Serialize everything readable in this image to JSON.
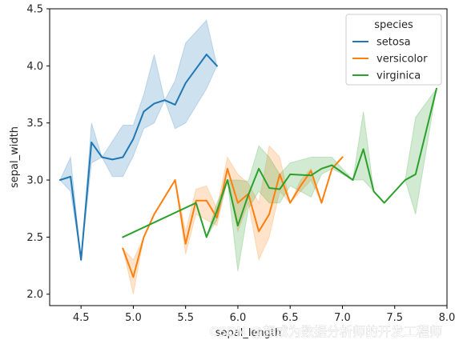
{
  "chart_data": {
    "type": "line",
    "xlabel": "sepal_length",
    "ylabel": "sepal_width",
    "xlim": [
      4.2,
      8.0
    ],
    "ylim": [
      1.9,
      4.5
    ],
    "xticks": [
      "4.5",
      "5.0",
      "5.5",
      "6.0",
      "6.5",
      "7.0",
      "7.5",
      "8.0"
    ],
    "yticks": [
      "2.0",
      "2.5",
      "3.0",
      "3.5",
      "4.0",
      "4.5"
    ],
    "legend": {
      "title": "species",
      "placement": "upper-right"
    },
    "series": [
      {
        "name": "setosa",
        "color": "#1f77b4",
        "x": [
          4.3,
          4.4,
          4.5,
          4.6,
          4.7,
          4.8,
          4.9,
          5.0,
          5.1,
          5.2,
          5.3,
          5.4,
          5.5,
          5.7,
          5.8
        ],
        "y": [
          3.0,
          3.03,
          2.3,
          3.33,
          3.2,
          3.18,
          3.2,
          3.36,
          3.6,
          3.67,
          3.7,
          3.66,
          3.85,
          4.1,
          4.0
        ],
        "ci_low": [
          3.0,
          2.9,
          2.3,
          3.15,
          3.2,
          3.03,
          3.03,
          3.21,
          3.45,
          3.5,
          3.7,
          3.45,
          3.5,
          3.8,
          4.0
        ],
        "ci_high": [
          3.0,
          3.2,
          2.3,
          3.5,
          3.2,
          3.34,
          3.48,
          3.48,
          3.75,
          4.1,
          3.7,
          3.87,
          4.2,
          4.4,
          4.0
        ]
      },
      {
        "name": "versicolor",
        "color": "#ff7f0e",
        "x": [
          4.9,
          5.0,
          5.1,
          5.2,
          5.4,
          5.5,
          5.6,
          5.7,
          5.8,
          5.9,
          6.0,
          6.1,
          6.2,
          6.3,
          6.4,
          6.5,
          6.6,
          6.7,
          6.8,
          6.9,
          7.0
        ],
        "y": [
          2.4,
          2.15,
          2.5,
          2.7,
          3.0,
          2.44,
          2.82,
          2.82,
          2.67,
          3.1,
          2.8,
          2.88,
          2.55,
          2.7,
          3.05,
          2.8,
          2.95,
          3.08,
          2.8,
          3.1,
          3.2
        ],
        "ci_low": [
          2.4,
          2.0,
          2.5,
          2.7,
          3.0,
          2.35,
          2.7,
          2.65,
          2.6,
          3.0,
          2.55,
          2.8,
          2.3,
          2.5,
          2.9,
          2.8,
          2.9,
          3.0,
          2.8,
          3.1,
          3.2
        ],
        "ci_high": [
          2.4,
          2.3,
          2.5,
          2.7,
          3.0,
          2.55,
          2.92,
          2.95,
          2.75,
          3.2,
          3.05,
          2.97,
          2.8,
          3.3,
          3.2,
          2.8,
          3.0,
          3.1,
          2.8,
          3.1,
          3.2
        ]
      },
      {
        "name": "virginica",
        "color": "#2ca02c",
        "x": [
          4.9,
          5.6,
          5.7,
          5.8,
          5.9,
          6.0,
          6.1,
          6.2,
          6.3,
          6.4,
          6.5,
          6.7,
          6.8,
          6.9,
          7.1,
          7.2,
          7.3,
          7.4,
          7.6,
          7.7,
          7.9
        ],
        "y": [
          2.5,
          2.8,
          2.5,
          2.73,
          3.0,
          2.6,
          2.87,
          3.1,
          2.93,
          2.92,
          3.05,
          3.04,
          3.1,
          3.13,
          3.0,
          3.27,
          2.9,
          2.8,
          3.0,
          3.05,
          3.8
        ],
        "ci_low": [
          2.5,
          2.8,
          2.5,
          2.65,
          3.0,
          2.2,
          2.75,
          2.9,
          2.8,
          2.8,
          2.95,
          2.85,
          3.05,
          3.1,
          3.0,
          3.0,
          2.9,
          2.8,
          3.0,
          2.7,
          3.8
        ],
        "ci_high": [
          2.5,
          2.8,
          2.5,
          2.8,
          3.0,
          3.0,
          2.99,
          3.3,
          3.2,
          3.05,
          3.15,
          3.2,
          3.2,
          3.2,
          3.0,
          3.6,
          2.9,
          2.8,
          3.0,
          3.55,
          3.8
        ]
      }
    ]
  },
  "watermark": "CSDN @想成为数据分析师的开发工程师"
}
